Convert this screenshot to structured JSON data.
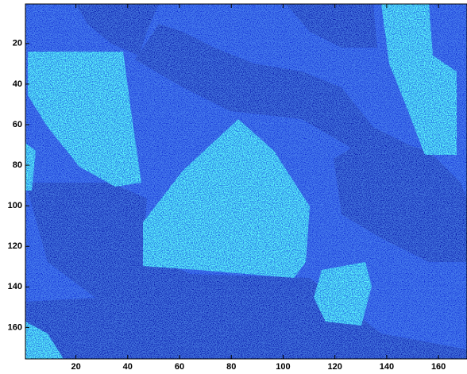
{
  "chart_data": {
    "type": "image",
    "xlim": [
      0.5,
      171
    ],
    "ylim": [
      0.5,
      175.5
    ],
    "y_direction": "reverse",
    "xticks": [
      20,
      40,
      60,
      80,
      100,
      120,
      140,
      160
    ],
    "yticks": [
      20,
      40,
      60,
      80,
      100,
      120,
      140,
      160
    ]
  }
}
